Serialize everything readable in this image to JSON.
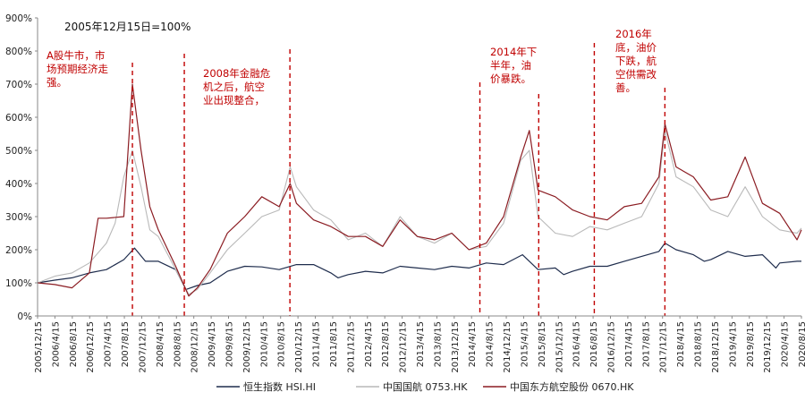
{
  "chart_data": {
    "type": "line",
    "baseline_note": "2005年12月15日=100%",
    "yaxis": {
      "ylim": [
        0,
        900
      ],
      "ticks": [
        "0%",
        "100%",
        "200%",
        "300%",
        "400%",
        "500%",
        "600%",
        "700%",
        "800%",
        "900%"
      ]
    },
    "xaxis": {
      "range": [
        "2005-12-15",
        "2020-09-15"
      ],
      "tick_labels": [
        "2005/12/15",
        "2006/4/15",
        "2006/8/15",
        "2006/12/15",
        "2007/4/15",
        "2007/8/15",
        "2007/12/15",
        "2008/4/15",
        "2008/8/15",
        "2008/12/15",
        "2009/4/15",
        "2009/8/15",
        "2009/12/15",
        "2010/4/15",
        "2010/8/15",
        "2010/12/15",
        "2011/4/15",
        "2011/8/15",
        "2011/12/15",
        "2012/4/15",
        "2012/8/15",
        "2012/12/15",
        "2013/4/15",
        "2013/8/15",
        "2013/12/15",
        "2014/4/15",
        "2014/8/15",
        "2014/12/15",
        "2015/4/15",
        "2015/8/15",
        "2015/12/15",
        "2016/4/15",
        "2016/8/15",
        "2016/12/15",
        "2017/4/15",
        "2017/8/15",
        "2017/12/15",
        "2018/4/15",
        "2018/8/15",
        "2018/12/15",
        "2019/4/15",
        "2019/8/15",
        "2019/12/15",
        "2020/4/15",
        "2020/8/15"
      ]
    },
    "series": [
      {
        "name": "恒生指数 HSI.HI",
        "color": "#1f2d4d",
        "x": [
          "2005-12-15",
          "2006-04-15",
          "2006-08-15",
          "2006-12-15",
          "2007-04-15",
          "2007-08-15",
          "2007-10-30",
          "2008-01-15",
          "2008-04-15",
          "2008-08-15",
          "2008-10-27",
          "2009-01-15",
          "2009-04-15",
          "2009-08-15",
          "2009-12-15",
          "2010-04-15",
          "2010-08-15",
          "2010-12-15",
          "2011-04-15",
          "2011-08-15",
          "2011-10-04",
          "2011-12-15",
          "2012-04-15",
          "2012-08-15",
          "2012-12-15",
          "2013-04-15",
          "2013-08-15",
          "2013-12-15",
          "2014-04-15",
          "2014-08-15",
          "2014-12-15",
          "2015-04-27",
          "2015-08-15",
          "2015-12-15",
          "2016-02-12",
          "2016-04-15",
          "2016-08-15",
          "2016-12-15",
          "2017-04-15",
          "2017-08-15",
          "2017-12-15",
          "2018-01-26",
          "2018-04-15",
          "2018-08-15",
          "2018-10-30",
          "2018-12-15",
          "2019-04-15",
          "2019-08-15",
          "2019-12-15",
          "2020-03-19",
          "2020-04-15",
          "2020-08-15",
          "2020-09-15"
        ],
        "y": [
          100,
          108,
          115,
          130,
          140,
          170,
          205,
          165,
          165,
          140,
          80,
          92,
          100,
          135,
          150,
          148,
          140,
          155,
          155,
          130,
          115,
          125,
          135,
          130,
          150,
          145,
          140,
          150,
          145,
          160,
          155,
          185,
          140,
          145,
          125,
          135,
          150,
          150,
          165,
          180,
          195,
          220,
          200,
          185,
          165,
          170,
          195,
          180,
          185,
          145,
          160,
          165,
          165
        ]
      },
      {
        "name": "中国国航 0753.HK",
        "color": "#b9b9b9",
        "x": [
          "2005-12-15",
          "2006-04-15",
          "2006-08-15",
          "2006-12-15",
          "2007-04-15",
          "2007-06-15",
          "2007-08-15",
          "2007-10-15",
          "2007-12-15",
          "2008-02-15",
          "2008-04-15",
          "2008-08-15",
          "2008-11-15",
          "2009-01-15",
          "2009-04-15",
          "2009-08-15",
          "2009-12-15",
          "2010-04-15",
          "2010-08-15",
          "2010-11-01",
          "2010-12-15",
          "2011-04-15",
          "2011-08-15",
          "2011-12-15",
          "2012-04-15",
          "2012-08-15",
          "2012-12-15",
          "2013-04-15",
          "2013-08-15",
          "2013-12-15",
          "2014-04-15",
          "2014-08-15",
          "2014-12-15",
          "2015-04-15",
          "2015-06-15",
          "2015-08-15",
          "2015-12-15",
          "2016-04-15",
          "2016-08-15",
          "2016-12-15",
          "2017-04-15",
          "2017-08-15",
          "2017-12-15",
          "2018-01-26",
          "2018-04-15",
          "2018-08-15",
          "2018-12-15",
          "2019-04-15",
          "2019-08-15",
          "2019-12-15",
          "2020-04-15",
          "2020-08-15",
          "2020-09-15"
        ],
        "y": [
          100,
          120,
          130,
          160,
          220,
          280,
          420,
          500,
          390,
          260,
          240,
          140,
          65,
          80,
          130,
          200,
          250,
          300,
          320,
          450,
          390,
          320,
          290,
          230,
          250,
          210,
          300,
          240,
          220,
          250,
          200,
          210,
          280,
          470,
          500,
          300,
          250,
          240,
          270,
          260,
          280,
          300,
          400,
          560,
          420,
          390,
          320,
          300,
          390,
          300,
          260,
          250,
          265
        ]
      },
      {
        "name": "中国东方航空股份 0670.HK",
        "color": "#8b1c22",
        "x": [
          "2005-12-15",
          "2006-04-15",
          "2006-08-15",
          "2006-12-15",
          "2007-02-15",
          "2007-04-15",
          "2007-08-15",
          "2007-10-15",
          "2007-12-15",
          "2008-02-15",
          "2008-04-15",
          "2008-08-15",
          "2008-11-15",
          "2009-01-15",
          "2009-04-15",
          "2009-08-15",
          "2009-12-15",
          "2010-04-15",
          "2010-08-15",
          "2010-11-01",
          "2010-12-15",
          "2011-04-15",
          "2011-08-15",
          "2011-12-15",
          "2012-04-15",
          "2012-08-15",
          "2012-12-15",
          "2013-04-15",
          "2013-08-15",
          "2013-12-15",
          "2014-04-15",
          "2014-08-15",
          "2014-12-15",
          "2015-04-15",
          "2015-06-15",
          "2015-08-15",
          "2015-12-15",
          "2016-04-15",
          "2016-08-15",
          "2016-12-15",
          "2017-04-15",
          "2017-08-15",
          "2017-12-15",
          "2018-01-26",
          "2018-04-15",
          "2018-08-15",
          "2018-12-15",
          "2019-04-15",
          "2019-08-15",
          "2019-12-15",
          "2020-04-15",
          "2020-08-15",
          "2020-09-15"
        ],
        "y": [
          100,
          95,
          85,
          130,
          295,
          295,
          300,
          700,
          500,
          330,
          260,
          150,
          60,
          85,
          140,
          250,
          300,
          360,
          330,
          400,
          340,
          290,
          270,
          240,
          240,
          210,
          290,
          240,
          230,
          250,
          200,
          220,
          300,
          480,
          560,
          380,
          360,
          320,
          300,
          290,
          330,
          340,
          420,
          580,
          450,
          420,
          350,
          360,
          480,
          340,
          310,
          230,
          260
        ]
      }
    ],
    "annotations": [
      {
        "date": "2007-10-15",
        "lines": [
          "A股牛市，市",
          "场预期经济走",
          "强。"
        ]
      },
      {
        "date": "2008-10-15",
        "lines": [
          "2008年金融危",
          "机之后，航空",
          "业出现整合，"
        ]
      },
      {
        "date": "2010-10-30",
        "lines": []
      },
      {
        "date": "2014-07-01",
        "lines": [
          "2014年下",
          "半年，油",
          "价暴跌。"
        ]
      },
      {
        "date": "2015-08-20",
        "lines": []
      },
      {
        "date": "2016-09-15",
        "lines": [
          "2016年",
          "底，油价",
          "下跌，航",
          "空供需改",
          "善。"
        ]
      },
      {
        "date": "2018-01-26",
        "lines": []
      }
    ],
    "legend": {
      "position": "bottom"
    }
  }
}
